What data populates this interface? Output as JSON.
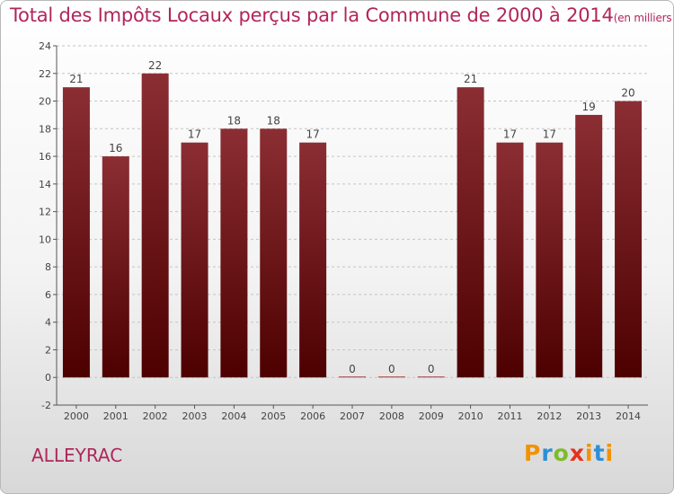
{
  "title": "Total des Impôts Locaux perçus par la Commune de 2000 à 2014",
  "unit": "(en milliers d'€)",
  "commune": "ALLEYRAC",
  "logo": {
    "p": "P",
    "r": "r",
    "o": "o",
    "x": "x",
    "i": "i",
    "t": "t",
    "i2": "i"
  },
  "colors": {
    "bar_top": "#8b2e34",
    "bar_bottom": "#4d0000",
    "title": "#b0265a"
  },
  "chart_data": {
    "type": "bar",
    "title": "Total des Impôts Locaux perçus par la Commune de 2000 à 2014",
    "xlabel": "",
    "ylabel": "",
    "categories": [
      "2000",
      "2001",
      "2002",
      "2003",
      "2004",
      "2005",
      "2006",
      "2007",
      "2008",
      "2009",
      "2010",
      "2011",
      "2012",
      "2013",
      "2014"
    ],
    "values": [
      21,
      16,
      22,
      17,
      18,
      18,
      17,
      0,
      0,
      0,
      21,
      17,
      17,
      19,
      20
    ],
    "ylim": [
      -2,
      24
    ],
    "yticks": [
      -2,
      0,
      2,
      4,
      6,
      8,
      10,
      12,
      14,
      16,
      18,
      20,
      22,
      24
    ],
    "grid": true
  }
}
